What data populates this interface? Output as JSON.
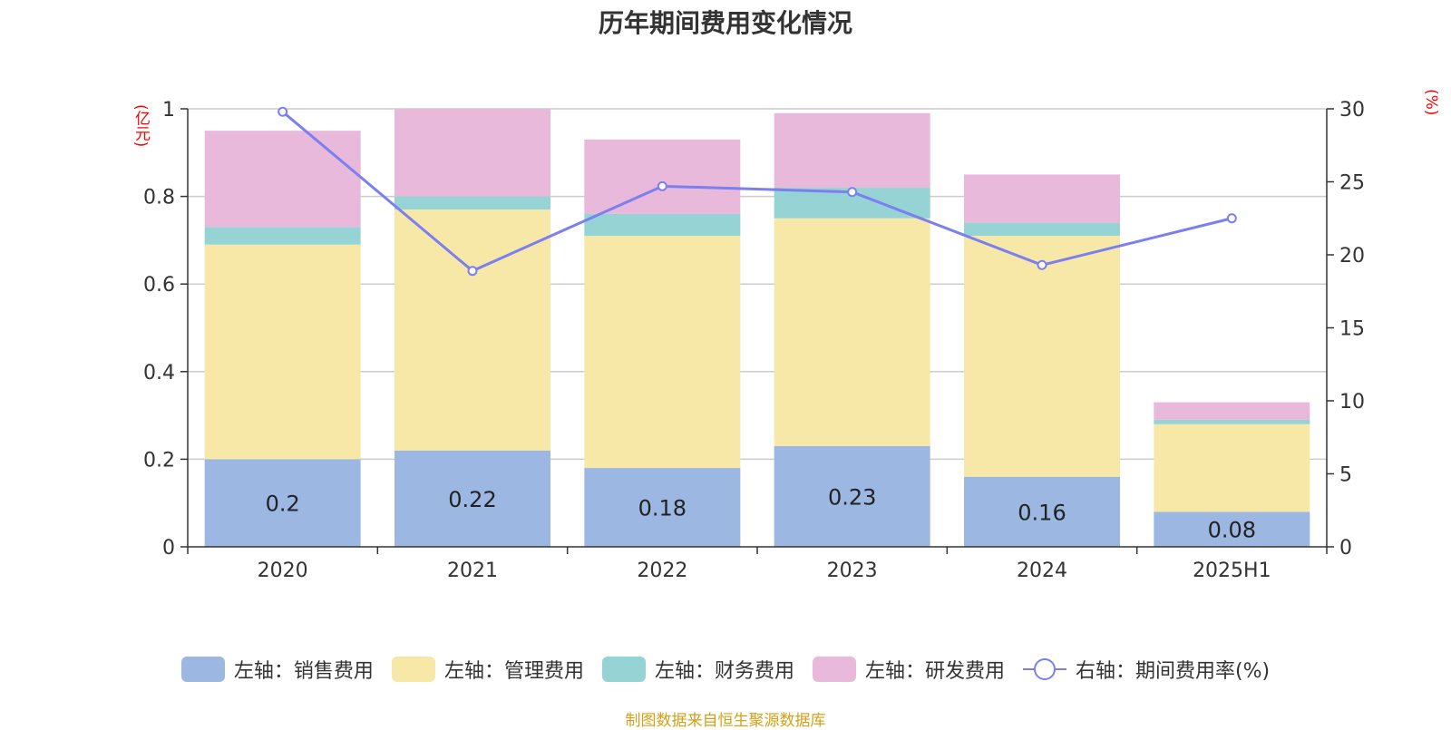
{
  "chart_data": {
    "type": "bar",
    "title": "历年期间费用变化情况",
    "left_unit": "(亿元)",
    "right_unit": "(%)",
    "categories": [
      "2020",
      "2021",
      "2022",
      "2023",
      "2024",
      "2025H1"
    ],
    "left_axis": {
      "min": 0,
      "max": 1,
      "ticks": [
        "0",
        "0.2",
        "0.4",
        "0.6",
        "0.8",
        "1"
      ]
    },
    "right_axis": {
      "min": 0,
      "max": 30,
      "ticks": [
        "0",
        "5",
        "10",
        "15",
        "20",
        "25",
        "30"
      ]
    },
    "series": [
      {
        "name": "左轴：销售费用",
        "values": [
          0.2,
          0.22,
          0.18,
          0.23,
          0.16,
          0.08
        ],
        "color": "#9cb8e2",
        "labels": [
          "0.2",
          "0.22",
          "0.18",
          "0.23",
          "0.16",
          "0.08"
        ]
      },
      {
        "name": "左轴：管理费用",
        "values": [
          0.49,
          0.55,
          0.53,
          0.52,
          0.55,
          0.2
        ],
        "color": "#f7e8a8"
      },
      {
        "name": "左轴：财务费用",
        "values": [
          0.04,
          0.03,
          0.05,
          0.07,
          0.03,
          0.01
        ],
        "color": "#96d3d4"
      },
      {
        "name": "左轴：研发费用",
        "values": [
          0.22,
          0.2,
          0.17,
          0.17,
          0.11,
          0.04
        ],
        "color": "#e8b9da"
      }
    ],
    "line_series": {
      "name": "右轴：期间费用率(%)",
      "values": [
        29.8,
        18.9,
        24.7,
        24.3,
        19.3,
        22.5
      ],
      "color": "#7b7ff0"
    },
    "grid": true,
    "legend_position": "bottom"
  },
  "source": "制图数据来自恒生聚源数据库"
}
